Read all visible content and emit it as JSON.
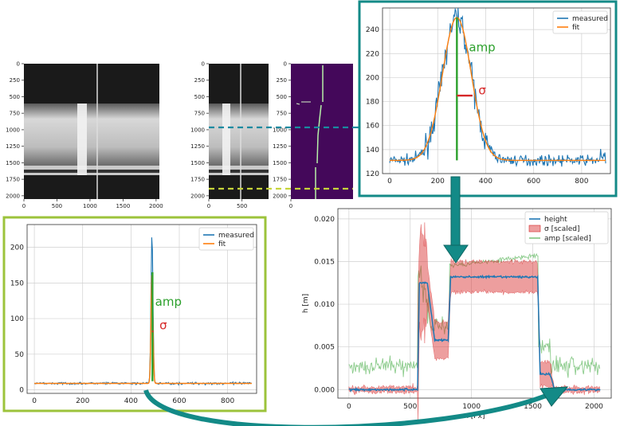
{
  "colors": {
    "measured": "#1f77b4",
    "fit": "#ff7f0e",
    "amp": "#2ca02c",
    "sigma": "#d62728",
    "teal_frame": "#138a87",
    "lime_frame": "#9cc33b",
    "teal_dash": "#1a8aa0",
    "lime_dash": "#c7d43a",
    "viridis_bg": "#44085a"
  },
  "images": {
    "raw": {
      "y_ticks": [
        "0",
        "250",
        "500",
        "750",
        "1000",
        "1250",
        "1500",
        "1750",
        "2000"
      ],
      "x_ticks": [
        "0",
        "500",
        "1000",
        "1500",
        "2000"
      ]
    },
    "cropped": {
      "y_ticks": [
        "0",
        "250",
        "500",
        "750",
        "1000",
        "1250",
        "1500",
        "1750",
        "2000"
      ],
      "x_ticks": [
        "0",
        "500"
      ]
    },
    "mask": {
      "y_ticks": [
        "0",
        "250",
        "500",
        "750",
        "1000",
        "1250",
        "1500",
        "1750",
        "2000"
      ],
      "x_ticks": [
        "0"
      ]
    }
  },
  "chart_data": [
    {
      "id": "teal-profile",
      "type": "line",
      "xlim": [
        -30,
        920
      ],
      "ylim": [
        120,
        258
      ],
      "x_ticks": [
        0,
        200,
        400,
        600,
        800
      ],
      "y_ticks": [
        120,
        140,
        160,
        180,
        200,
        220,
        240,
        260
      ],
      "grid": true,
      "legend": {
        "placement": "top-right",
        "entries": [
          "measured",
          "fit"
        ]
      },
      "series": [
        {
          "name": "measured",
          "kind": "noisy-peak",
          "baseline": 131,
          "peak": 250,
          "center": 280,
          "sigma": 60,
          "noise": 3.0
        },
        {
          "name": "fit",
          "kind": "gaussian",
          "baseline": 131,
          "peak": 250,
          "center": 280,
          "sigma": 60
        }
      ],
      "annotations": [
        {
          "label": "amp",
          "kind": "vertical",
          "x": 280,
          "y_from": 131,
          "y_to": 250,
          "color": "amp",
          "text_at": [
            330,
            222
          ]
        },
        {
          "label": "σ",
          "kind": "horizontal",
          "y": 185,
          "x_from": 280,
          "x_to": 345,
          "color": "sigma",
          "text_at": [
            370,
            186
          ]
        }
      ]
    },
    {
      "id": "lime-profile",
      "type": "line",
      "xlim": [
        -30,
        920
      ],
      "ylim": [
        -5,
        232
      ],
      "x_ticks": [
        0,
        200,
        400,
        600,
        800
      ],
      "y_ticks": [
        0,
        50,
        100,
        150,
        200
      ],
      "grid": true,
      "legend": {
        "placement": "top-right",
        "entries": [
          "measured",
          "fit"
        ]
      },
      "series": [
        {
          "name": "measured",
          "kind": "spike",
          "baseline": 9,
          "peak": 220,
          "center": 487,
          "sigma": 4,
          "noise": 1.2
        },
        {
          "name": "fit",
          "kind": "gaussian",
          "baseline": 9,
          "peak": 165,
          "center": 487,
          "sigma": 4
        }
      ],
      "annotations": [
        {
          "label": "amp",
          "kind": "vertical",
          "x": 489,
          "y_from": 12,
          "y_to": 165,
          "color": "amp",
          "text_at": [
            500,
            118
          ]
        },
        {
          "label": "σ",
          "kind": "horizontal",
          "y": 82,
          "x_from": 487,
          "x_to": 492,
          "color": "sigma",
          "text_at": [
            518,
            85
          ]
        }
      ]
    },
    {
      "id": "height-profile",
      "type": "line",
      "xlim": [
        -90,
        2140
      ],
      "ylim": [
        -0.001,
        0.0212
      ],
      "xlabel": "x [Px]",
      "ylabel": "h [m]",
      "x_ticks": [
        0,
        500,
        1000,
        1500,
        2000
      ],
      "y_ticks": [
        0.0,
        0.005,
        0.01,
        0.015,
        0.02
      ],
      "x_tick_labels": [
        "0",
        "500",
        "1000",
        "1500",
        "2000"
      ],
      "y_tick_labels": [
        "0.000",
        "0.005",
        "0.010",
        "0.015",
        "0.020"
      ],
      "grid": true,
      "legend": {
        "placement": "top-right",
        "entries": [
          "height",
          "σ [scaled]",
          "amp [scaled]"
        ]
      },
      "height_steps": [
        {
          "x0": 0,
          "x1": 560,
          "h": 0.0
        },
        {
          "x0": 575,
          "x1": 640,
          "h": 0.0125
        },
        {
          "x0": 700,
          "x1": 810,
          "h": 0.0058
        },
        {
          "x0": 830,
          "x1": 1540,
          "h": 0.0132
        },
        {
          "x0": 1560,
          "x1": 1640,
          "h": 0.0018
        },
        {
          "x0": 1680,
          "x1": 2050,
          "h": 0.0
        }
      ],
      "sigma_band_halfwidth": [
        {
          "x0": 560,
          "x1": 640,
          "d": 0.004
        },
        {
          "x0": 640,
          "x1": 820,
          "d": 0.0022
        },
        {
          "x0": 820,
          "x1": 1540,
          "d": 0.0018
        },
        {
          "x0": 1540,
          "x1": 1650,
          "d": 0.0014
        }
      ],
      "amp_scaled": {
        "left_mean": 0.0028,
        "mid1": 0.0148,
        "dip": 0.0075,
        "plateau": 0.0145,
        "plateau_end": 0.0157,
        "tail": 0.0035,
        "right_mean": 0.0028
      }
    }
  ]
}
